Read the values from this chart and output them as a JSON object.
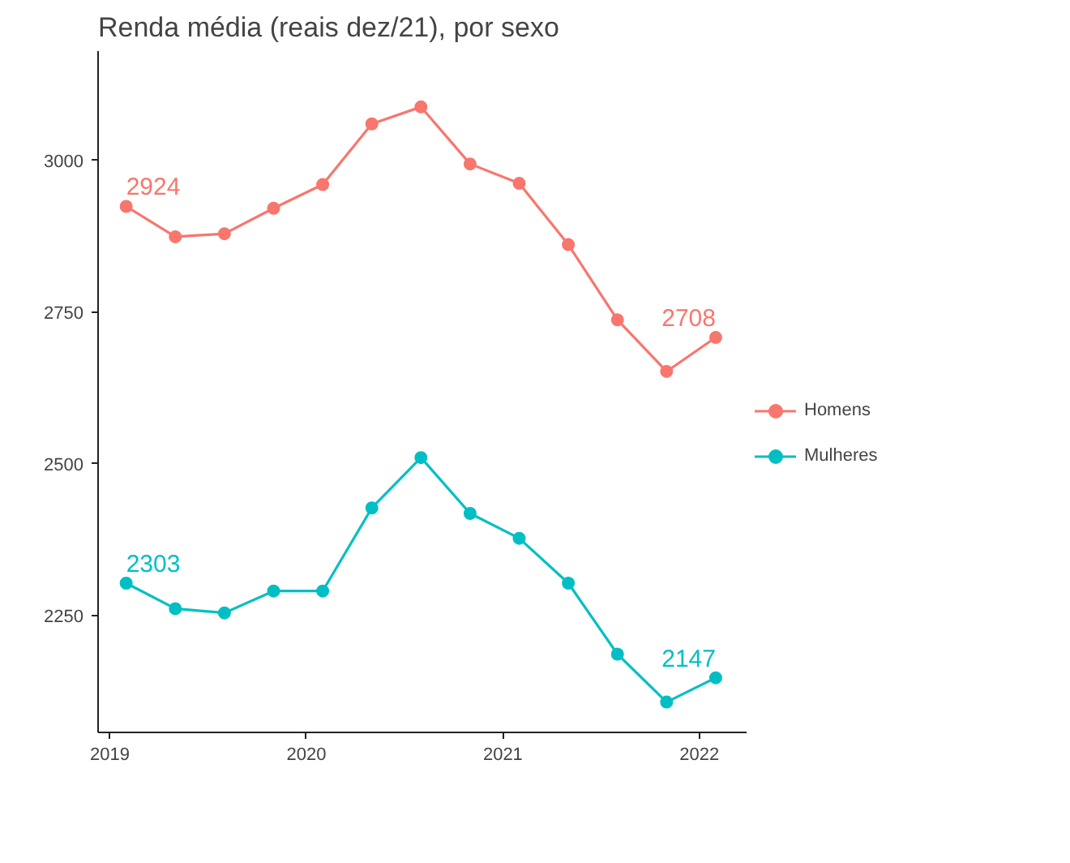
{
  "chart_data": {
    "type": "line",
    "title": "Renda média (reais dez/21), por sexo",
    "x": [
      2019.083,
      2019.333,
      2019.583,
      2019.833,
      2020.083,
      2020.333,
      2020.583,
      2020.833,
      2021.083,
      2021.333,
      2021.583,
      2021.833,
      2022.083
    ],
    "series": [
      {
        "name": "Homens",
        "color": "#f8766d",
        "values": [
          2924,
          2874,
          2879,
          2921,
          2960,
          3060,
          3088,
          2994,
          2962,
          2861,
          2737,
          2652,
          2708
        ],
        "value_labels": [
          "2924",
          null,
          null,
          null,
          null,
          null,
          null,
          null,
          null,
          null,
          null,
          null,
          "2708"
        ]
      },
      {
        "name": "Mulheres",
        "color": "#00bfc4",
        "values": [
          2303,
          2261,
          2254,
          2290,
          2290,
          2427,
          2510,
          2418,
          2377,
          2303,
          2186,
          2107,
          2147
        ],
        "value_labels": [
          "2303",
          null,
          null,
          null,
          null,
          null,
          null,
          null,
          null,
          null,
          null,
          null,
          "2147"
        ]
      }
    ],
    "xlim": [
      2018.94,
      2022.24
    ],
    "xticks": [
      2019,
      2020,
      2021,
      2022
    ],
    "ylim": [
      2057,
      3180
    ],
    "yticks": [
      2250,
      2500,
      2750,
      3000
    ],
    "grid": false,
    "legend": "right",
    "marker": "circle",
    "line_style": "solid"
  }
}
